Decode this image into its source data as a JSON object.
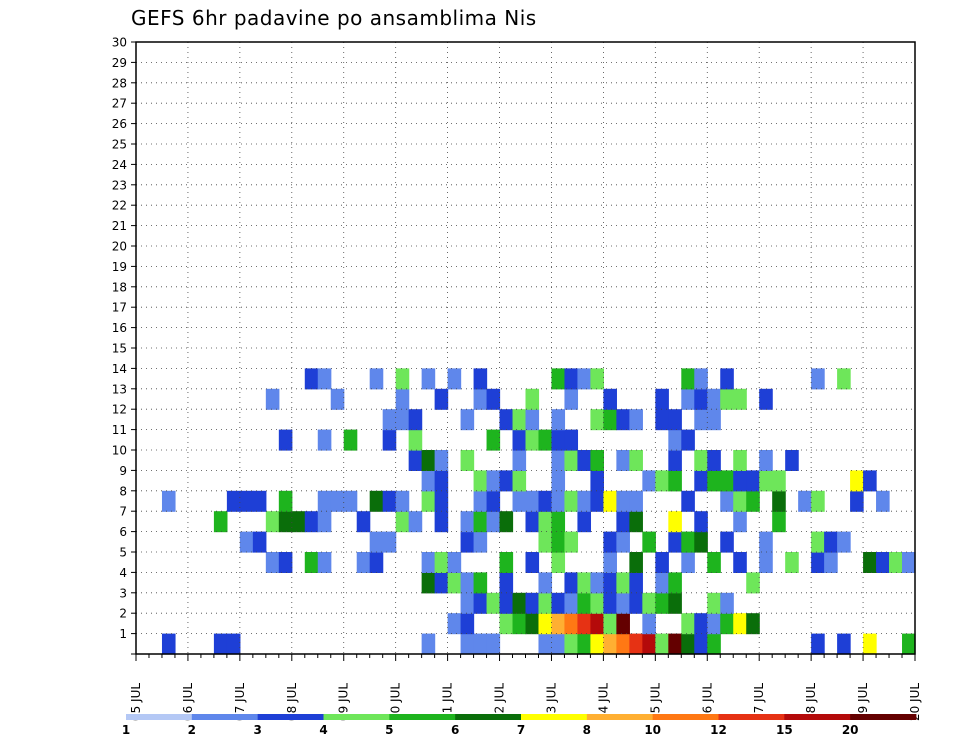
{
  "title": "GEFS 6hr padavine po ansamblima Nis",
  "chart_data": {
    "type": "heatmap",
    "title": "GEFS 6hr padavine po ansamblima Nis",
    "x_labels": [
      "05 JUL",
      "06 JUL",
      "07 JUL",
      "08 JUL",
      "09 JUL",
      "10 JUL",
      "11 JUL",
      "12 JUL",
      "13 JUL",
      "14 JUL",
      "15 JUL",
      "16 JUL",
      "17 JUL",
      "18 JUL",
      "19 JUL",
      "20 JUL"
    ],
    "y_labels": [
      "1",
      "2",
      "3",
      "4",
      "5",
      "6",
      "7",
      "8",
      "9",
      "10",
      "11",
      "12",
      "13",
      "14",
      "15",
      "16",
      "17",
      "18",
      "19",
      "20",
      "21",
      "22",
      "23",
      "24",
      "25",
      "26",
      "27",
      "28",
      "29",
      "30"
    ],
    "x_unit": "6-hour steps from 05 JUL 00Z",
    "xlim": [
      0,
      60
    ],
    "ylim": [
      0,
      30
    ],
    "grid": true,
    "legend_labels": [
      "1",
      "2",
      "3",
      "4",
      "5",
      "6",
      "7",
      "8",
      "10",
      "12",
      "15",
      "20"
    ],
    "legend_colors": [
      "#b4c8f5",
      "#5f87eb",
      "#1e3fd6",
      "#6ee65a",
      "#1eb41e",
      "#0a6e0a",
      "#ffff00",
      "#ffaf32",
      "#ff7814",
      "#e63214",
      "#b40a0a",
      "#640000"
    ],
    "cells": [
      [
        0,
        2,
        2
      ],
      [
        0,
        6,
        2
      ],
      [
        0,
        7,
        2
      ],
      [
        0,
        22,
        1
      ],
      [
        0,
        25,
        1
      ],
      [
        0,
        26,
        1
      ],
      [
        0,
        27,
        1
      ],
      [
        0,
        31,
        1
      ],
      [
        0,
        32,
        1
      ],
      [
        0,
        33,
        3
      ],
      [
        0,
        34,
        4
      ],
      [
        0,
        35,
        6
      ],
      [
        0,
        36,
        7
      ],
      [
        0,
        37,
        8
      ],
      [
        0,
        38,
        9
      ],
      [
        0,
        39,
        10
      ],
      [
        0,
        40,
        3
      ],
      [
        0,
        41,
        11
      ],
      [
        0,
        42,
        5
      ],
      [
        0,
        43,
        2
      ],
      [
        0,
        44,
        4
      ],
      [
        0,
        52,
        2
      ],
      [
        0,
        54,
        2
      ],
      [
        0,
        56,
        6
      ],
      [
        0,
        59,
        4
      ],
      [
        1,
        24,
        1
      ],
      [
        1,
        25,
        2
      ],
      [
        1,
        28,
        3
      ],
      [
        1,
        29,
        4
      ],
      [
        1,
        30,
        5
      ],
      [
        1,
        31,
        6
      ],
      [
        1,
        32,
        7
      ],
      [
        1,
        33,
        8
      ],
      [
        1,
        34,
        9
      ],
      [
        1,
        35,
        10
      ],
      [
        1,
        36,
        3
      ],
      [
        1,
        37,
        11
      ],
      [
        1,
        39,
        1
      ],
      [
        1,
        42,
        3
      ],
      [
        1,
        43,
        2
      ],
      [
        1,
        44,
        1
      ],
      [
        1,
        45,
        4
      ],
      [
        1,
        46,
        6
      ],
      [
        1,
        47,
        5
      ],
      [
        2,
        25,
        1
      ],
      [
        2,
        26,
        2
      ],
      [
        2,
        27,
        3
      ],
      [
        2,
        28,
        2
      ],
      [
        2,
        29,
        5
      ],
      [
        2,
        30,
        2
      ],
      [
        2,
        31,
        3
      ],
      [
        2,
        32,
        2
      ],
      [
        2,
        33,
        1
      ],
      [
        2,
        34,
        4
      ],
      [
        2,
        35,
        3
      ],
      [
        2,
        36,
        2
      ],
      [
        2,
        37,
        1
      ],
      [
        2,
        38,
        2
      ],
      [
        2,
        39,
        3
      ],
      [
        2,
        40,
        4
      ],
      [
        2,
        41,
        5
      ],
      [
        2,
        44,
        3
      ],
      [
        2,
        45,
        1
      ],
      [
        3,
        22,
        5
      ],
      [
        3,
        23,
        2
      ],
      [
        3,
        24,
        3
      ],
      [
        3,
        25,
        1
      ],
      [
        3,
        26,
        4
      ],
      [
        3,
        28,
        2
      ],
      [
        3,
        31,
        1
      ],
      [
        3,
        33,
        2
      ],
      [
        3,
        34,
        3
      ],
      [
        3,
        35,
        1
      ],
      [
        3,
        36,
        2
      ],
      [
        3,
        37,
        3
      ],
      [
        3,
        38,
        2
      ],
      [
        3,
        40,
        1
      ],
      [
        3,
        41,
        4
      ],
      [
        3,
        47,
        3
      ],
      [
        4,
        10,
        1
      ],
      [
        4,
        11,
        2
      ],
      [
        4,
        13,
        4
      ],
      [
        4,
        14,
        1
      ],
      [
        4,
        17,
        1
      ],
      [
        4,
        18,
        2
      ],
      [
        4,
        22,
        1
      ],
      [
        4,
        23,
        3
      ],
      [
        4,
        24,
        1
      ],
      [
        4,
        28,
        4
      ],
      [
        4,
        30,
        2
      ],
      [
        4,
        32,
        3
      ],
      [
        4,
        36,
        1
      ],
      [
        4,
        38,
        5
      ],
      [
        4,
        40,
        2
      ],
      [
        4,
        42,
        1
      ],
      [
        4,
        44,
        4
      ],
      [
        4,
        46,
        2
      ],
      [
        4,
        48,
        1
      ],
      [
        4,
        50,
        3
      ],
      [
        4,
        52,
        2
      ],
      [
        4,
        53,
        1
      ],
      [
        4,
        56,
        5
      ],
      [
        4,
        57,
        2
      ],
      [
        4,
        58,
        3
      ],
      [
        4,
        59,
        1
      ],
      [
        5,
        8,
        1
      ],
      [
        5,
        9,
        2
      ],
      [
        5,
        18,
        1
      ],
      [
        5,
        19,
        1
      ],
      [
        5,
        25,
        2
      ],
      [
        5,
        26,
        1
      ],
      [
        5,
        31,
        3
      ],
      [
        5,
        32,
        4
      ],
      [
        5,
        33,
        3
      ],
      [
        5,
        36,
        2
      ],
      [
        5,
        37,
        1
      ],
      [
        5,
        39,
        4
      ],
      [
        5,
        41,
        2
      ],
      [
        5,
        42,
        4
      ],
      [
        5,
        43,
        5
      ],
      [
        5,
        45,
        2
      ],
      [
        5,
        48,
        1
      ],
      [
        5,
        52,
        3
      ],
      [
        5,
        53,
        2
      ],
      [
        5,
        54,
        1
      ],
      [
        6,
        6,
        4
      ],
      [
        6,
        10,
        3
      ],
      [
        6,
        11,
        5
      ],
      [
        6,
        12,
        5
      ],
      [
        6,
        13,
        2
      ],
      [
        6,
        14,
        1
      ],
      [
        6,
        17,
        2
      ],
      [
        6,
        20,
        3
      ],
      [
        6,
        21,
        1
      ],
      [
        6,
        23,
        2
      ],
      [
        6,
        25,
        1
      ],
      [
        6,
        26,
        4
      ],
      [
        6,
        27,
        1
      ],
      [
        6,
        28,
        5
      ],
      [
        6,
        30,
        2
      ],
      [
        6,
        31,
        3
      ],
      [
        6,
        32,
        4
      ],
      [
        6,
        34,
        2
      ],
      [
        6,
        37,
        2
      ],
      [
        6,
        38,
        5
      ],
      [
        6,
        41,
        6
      ],
      [
        6,
        43,
        2
      ],
      [
        6,
        46,
        1
      ],
      [
        6,
        49,
        4
      ],
      [
        7,
        2,
        1
      ],
      [
        7,
        7,
        2
      ],
      [
        7,
        8,
        2
      ],
      [
        7,
        9,
        2
      ],
      [
        7,
        11,
        4
      ],
      [
        7,
        14,
        1
      ],
      [
        7,
        15,
        1
      ],
      [
        7,
        16,
        1
      ],
      [
        7,
        18,
        5
      ],
      [
        7,
        19,
        2
      ],
      [
        7,
        20,
        1
      ],
      [
        7,
        22,
        3
      ],
      [
        7,
        23,
        2
      ],
      [
        7,
        26,
        1
      ],
      [
        7,
        27,
        2
      ],
      [
        7,
        29,
        1
      ],
      [
        7,
        30,
        1
      ],
      [
        7,
        31,
        2
      ],
      [
        7,
        32,
        1
      ],
      [
        7,
        33,
        3
      ],
      [
        7,
        34,
        1
      ],
      [
        7,
        35,
        2
      ],
      [
        7,
        36,
        6
      ],
      [
        7,
        37,
        1
      ],
      [
        7,
        38,
        1
      ],
      [
        7,
        42,
        2
      ],
      [
        7,
        45,
        1
      ],
      [
        7,
        46,
        3
      ],
      [
        7,
        47,
        4
      ],
      [
        7,
        49,
        5
      ],
      [
        7,
        51,
        1
      ],
      [
        7,
        52,
        3
      ],
      [
        7,
        55,
        2
      ],
      [
        7,
        57,
        1
      ],
      [
        8,
        22,
        1
      ],
      [
        8,
        23,
        2
      ],
      [
        8,
        26,
        3
      ],
      [
        8,
        27,
        1
      ],
      [
        8,
        28,
        2
      ],
      [
        8,
        29,
        3
      ],
      [
        8,
        32,
        1
      ],
      [
        8,
        35,
        2
      ],
      [
        8,
        39,
        1
      ],
      [
        8,
        40,
        3
      ],
      [
        8,
        41,
        4
      ],
      [
        8,
        43,
        2
      ],
      [
        8,
        44,
        4
      ],
      [
        8,
        45,
        4
      ],
      [
        8,
        46,
        2
      ],
      [
        8,
        47,
        2
      ],
      [
        8,
        48,
        3
      ],
      [
        8,
        49,
        3
      ],
      [
        8,
        55,
        6
      ],
      [
        8,
        56,
        2
      ],
      [
        9,
        21,
        2
      ],
      [
        9,
        22,
        5
      ],
      [
        9,
        23,
        1
      ],
      [
        9,
        25,
        3
      ],
      [
        9,
        29,
        1
      ],
      [
        9,
        32,
        1
      ],
      [
        9,
        33,
        3
      ],
      [
        9,
        34,
        2
      ],
      [
        9,
        35,
        4
      ],
      [
        9,
        37,
        1
      ],
      [
        9,
        38,
        3
      ],
      [
        9,
        41,
        2
      ],
      [
        9,
        43,
        3
      ],
      [
        9,
        44,
        2
      ],
      [
        9,
        46,
        3
      ],
      [
        9,
        48,
        1
      ],
      [
        9,
        50,
        2
      ],
      [
        10,
        11,
        2
      ],
      [
        10,
        14,
        1
      ],
      [
        10,
        16,
        4
      ],
      [
        10,
        19,
        2
      ],
      [
        10,
        21,
        3
      ],
      [
        10,
        27,
        4
      ],
      [
        10,
        29,
        2
      ],
      [
        10,
        30,
        3
      ],
      [
        10,
        31,
        4
      ],
      [
        10,
        32,
        2
      ],
      [
        10,
        33,
        2
      ],
      [
        10,
        41,
        1
      ],
      [
        10,
        42,
        2
      ],
      [
        11,
        19,
        1
      ],
      [
        11,
        20,
        1
      ],
      [
        11,
        21,
        2
      ],
      [
        11,
        25,
        1
      ],
      [
        11,
        28,
        2
      ],
      [
        11,
        29,
        3
      ],
      [
        11,
        30,
        1
      ],
      [
        11,
        32,
        1
      ],
      [
        11,
        35,
        3
      ],
      [
        11,
        36,
        4
      ],
      [
        11,
        37,
        2
      ],
      [
        11,
        38,
        1
      ],
      [
        11,
        40,
        2
      ],
      [
        11,
        41,
        2
      ],
      [
        11,
        43,
        1
      ],
      [
        11,
        44,
        1
      ],
      [
        12,
        10,
        1
      ],
      [
        12,
        15,
        1
      ],
      [
        12,
        20,
        1
      ],
      [
        12,
        23,
        2
      ],
      [
        12,
        26,
        1
      ],
      [
        12,
        27,
        2
      ],
      [
        12,
        30,
        3
      ],
      [
        12,
        33,
        1
      ],
      [
        12,
        36,
        2
      ],
      [
        12,
        40,
        2
      ],
      [
        12,
        42,
        1
      ],
      [
        12,
        43,
        2
      ],
      [
        12,
        44,
        1
      ],
      [
        12,
        45,
        3
      ],
      [
        12,
        46,
        3
      ],
      [
        12,
        48,
        2
      ],
      [
        13,
        13,
        2
      ],
      [
        13,
        14,
        1
      ],
      [
        13,
        18,
        1
      ],
      [
        13,
        20,
        3
      ],
      [
        13,
        22,
        1
      ],
      [
        13,
        24,
        1
      ],
      [
        13,
        26,
        2
      ],
      [
        13,
        32,
        4
      ],
      [
        13,
        33,
        2
      ],
      [
        13,
        34,
        1
      ],
      [
        13,
        35,
        3
      ],
      [
        13,
        42,
        4
      ],
      [
        13,
        43,
        1
      ],
      [
        13,
        45,
        2
      ],
      [
        13,
        52,
        1
      ],
      [
        13,
        54,
        3
      ]
    ]
  }
}
